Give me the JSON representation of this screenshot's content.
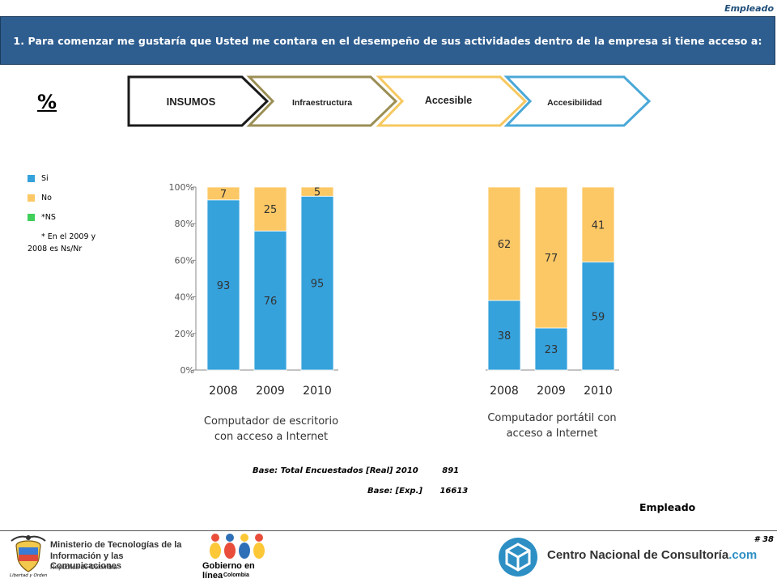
{
  "top_tag": "Empleado",
  "header": {
    "question": "1. Para comenzar me gustaría que Usted me contara  en el desempeño de sus actividades dentro de la  empresa si tiene acceso a:"
  },
  "percent_sign": "%",
  "process_steps": [
    {
      "label": "INSUMOS",
      "border_color": "#1a1a1a"
    },
    {
      "label": "Infraestructura",
      "border_color": "#9b8f55"
    },
    {
      "label": "Accesible",
      "border_color": "#f6c85f"
    },
    {
      "label": "Accesibilidad",
      "border_color": "#4aa8d8"
    }
  ],
  "legend": {
    "items": [
      {
        "label": "Si",
        "color": "#35a2dc"
      },
      {
        "label": "No",
        "color": "#fcc865"
      },
      {
        "label": "*NS",
        "color": "#3fcf5a"
      }
    ],
    "note_line1": "* En el 2009 y",
    "note_line2": "2008 es Ns/Nr"
  },
  "chart_data": [
    {
      "type": "bar",
      "stacked": true,
      "title_line1": "Computador de escritorio",
      "title_line2": "con acceso a Internet",
      "categories": [
        "2008",
        "2009",
        "2010"
      ],
      "y_ticks": [
        "0%",
        "20%",
        "40%",
        "60%",
        "80%",
        "100%"
      ],
      "ylim": [
        0,
        100
      ],
      "series": [
        {
          "name": "Si",
          "color": "#35a2dc",
          "values": [
            93,
            76,
            95
          ]
        },
        {
          "name": "No",
          "color": "#fcc865",
          "values": [
            7,
            25,
            5
          ]
        }
      ]
    },
    {
      "type": "bar",
      "stacked": true,
      "title_line1": "Computador portátil con",
      "title_line2": "acceso a Internet",
      "categories": [
        "2008",
        "2009",
        "2010"
      ],
      "ylim": [
        0,
        100
      ],
      "series": [
        {
          "name": "Si",
          "color": "#35a2dc",
          "values": [
            38,
            23,
            59
          ]
        },
        {
          "name": "No",
          "color": "#fcc865",
          "values": [
            62,
            77,
            41
          ]
        }
      ]
    }
  ],
  "base": {
    "line1_label": "Base: Total Encuestados [Real] 2010",
    "line1_value": "891",
    "line2_label": "Base: [Exp.]",
    "line2_value": "16613"
  },
  "footer": {
    "empleado": "Empleado",
    "slide_number": "# 38",
    "mintic_line1": "Ministerio de Tecnologías de la",
    "mintic_line2": "Información y las Comunicaciones",
    "mintic_line3": "República de Colombia",
    "motto": "Libertad y Orden",
    "gel_line1": "Gobierno en línea",
    "gel_line2": "Colombia",
    "cnc_text": "Centro Nacional de Consultoría",
    "cnc_suffix": ".com"
  }
}
